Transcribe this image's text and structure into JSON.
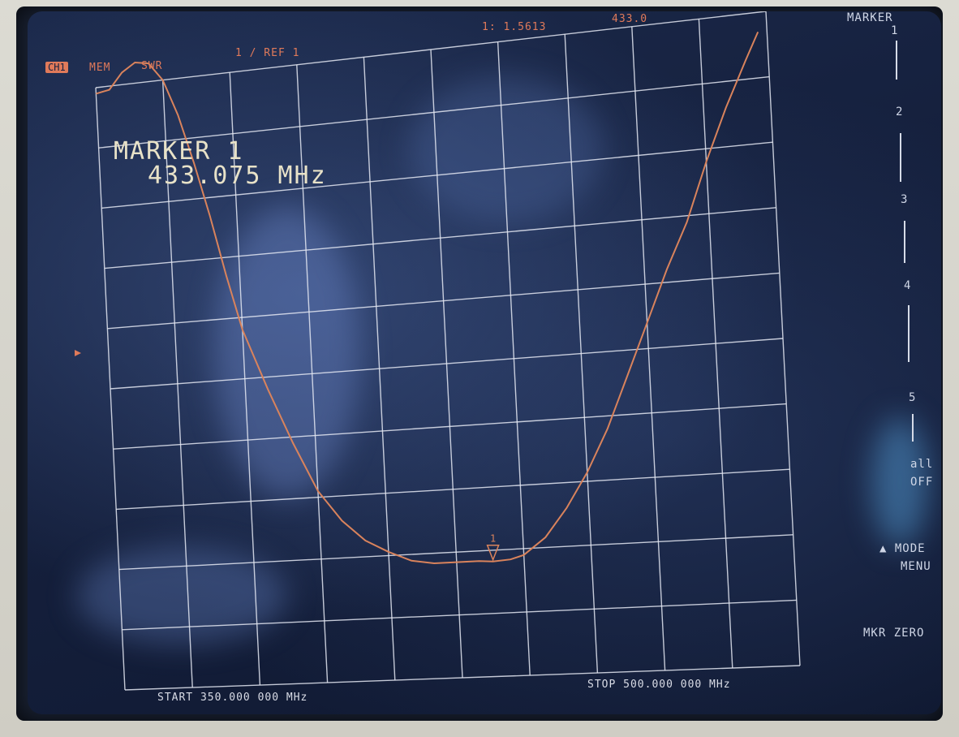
{
  "status_bar": {
    "channel": "CH1",
    "memory": "MEM",
    "format": "SWR",
    "scale": "1  / REF 1",
    "marker_value": "1: 1.5613",
    "marker_freq_partial": "433.0"
  },
  "marker_readout": {
    "title": "MARKER 1",
    "frequency": "433.075 MHz"
  },
  "sweep": {
    "start_label": "START 350.000 000 MHz",
    "stop_label": "STOP 500.000 000 MHz"
  },
  "softkeys": {
    "header": "MARKER",
    "marker_numbers": [
      "1",
      "2",
      "3",
      "4",
      "5"
    ],
    "all_off_line1": "all",
    "all_off_line2": "OFF",
    "mode_menu_line1": "▲ MODE",
    "mode_menu_line2": "MENU",
    "mkr_zero": "MKR ZERO"
  },
  "colors": {
    "trace": "#d9835c",
    "grid": "#e4e8f2",
    "annotation": "#e07a5a",
    "readout": "#e8e2c8"
  },
  "trace_data": {
    "units": "SWR",
    "x_range_mhz": [
      350,
      500
    ],
    "marker": {
      "x_mhz": 433.075,
      "y_swr": 1.5613
    },
    "points": [
      [
        350,
        5.6
      ],
      [
        353,
        5.62
      ],
      [
        356,
        5.75
      ],
      [
        359,
        5.82
      ],
      [
        362,
        5.8
      ],
      [
        365,
        5.65
      ],
      [
        368,
        5.35
      ],
      [
        371,
        4.95
      ],
      [
        374,
        4.5
      ],
      [
        377,
        4.0
      ],
      [
        380,
        3.55
      ],
      [
        385,
        3.05
      ],
      [
        390,
        2.6
      ],
      [
        395,
        2.2
      ],
      [
        400,
        1.95
      ],
      [
        405,
        1.78
      ],
      [
        410,
        1.68
      ],
      [
        415,
        1.6
      ],
      [
        420,
        1.57
      ],
      [
        425,
        1.57
      ],
      [
        430,
        1.57
      ],
      [
        433.075,
        1.5613
      ],
      [
        437,
        1.57
      ],
      [
        440,
        1.6
      ],
      [
        445,
        1.73
      ],
      [
        450,
        1.95
      ],
      [
        455,
        2.22
      ],
      [
        460,
        2.55
      ],
      [
        465,
        2.95
      ],
      [
        470,
        3.35
      ],
      [
        475,
        3.75
      ],
      [
        480,
        4.1
      ],
      [
        485,
        4.55
      ],
      [
        490,
        4.95
      ],
      [
        495,
        5.3
      ],
      [
        498,
        5.5
      ]
    ]
  }
}
